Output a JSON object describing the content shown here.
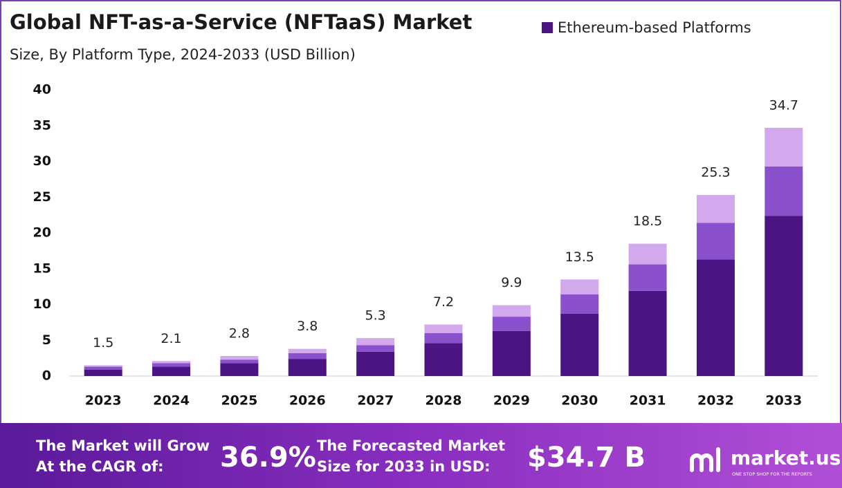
{
  "chart_data": {
    "type": "stacked-bar",
    "title": "Global NFT-as-a-Service (NFTaaS) Market",
    "subtitle": "Size, By Platform Type, 2024-2033 (USD Billion)",
    "categories": [
      "2023",
      "2024",
      "2025",
      "2026",
      "2027",
      "2028",
      "2029",
      "2030",
      "2031",
      "2032",
      "2033"
    ],
    "series": [
      {
        "name": "Ethereum-based Platforms",
        "color": "#4a1483",
        "values": [
          0.9,
          1.3,
          1.8,
          2.4,
          3.4,
          4.6,
          6.3,
          8.7,
          11.9,
          16.3,
          22.4
        ]
      },
      {
        "color": "#8b50cc",
        "values": [
          0.4,
          0.5,
          0.5,
          0.8,
          0.9,
          1.4,
          2.0,
          2.7,
          3.7,
          5.1,
          6.9
        ]
      },
      {
        "color": "#d3a9ee",
        "values": [
          0.2,
          0.3,
          0.5,
          0.6,
          1.0,
          1.2,
          1.6,
          2.1,
          2.9,
          3.9,
          5.4
        ]
      }
    ],
    "totals": [
      1.5,
      2.1,
      2.8,
      3.8,
      5.3,
      7.2,
      9.9,
      13.5,
      18.5,
      25.3,
      34.7
    ],
    "ylim": [
      0,
      40
    ],
    "yticks": [
      0,
      5,
      10,
      15,
      20,
      25,
      30,
      35,
      40
    ],
    "legend_position": "top-right"
  },
  "footer": {
    "cagr_text": [
      "The Market will Grow",
      "At the CAGR of:"
    ],
    "cagr_value": "36.9%",
    "forecast_text": [
      "The Forecasted Market",
      "Size for 2033 in USD:"
    ],
    "forecast_value": "$34.7 B",
    "brand": "market.us",
    "brand_tagline": "ONE STOP SHOP FOR THE REPORTS"
  }
}
